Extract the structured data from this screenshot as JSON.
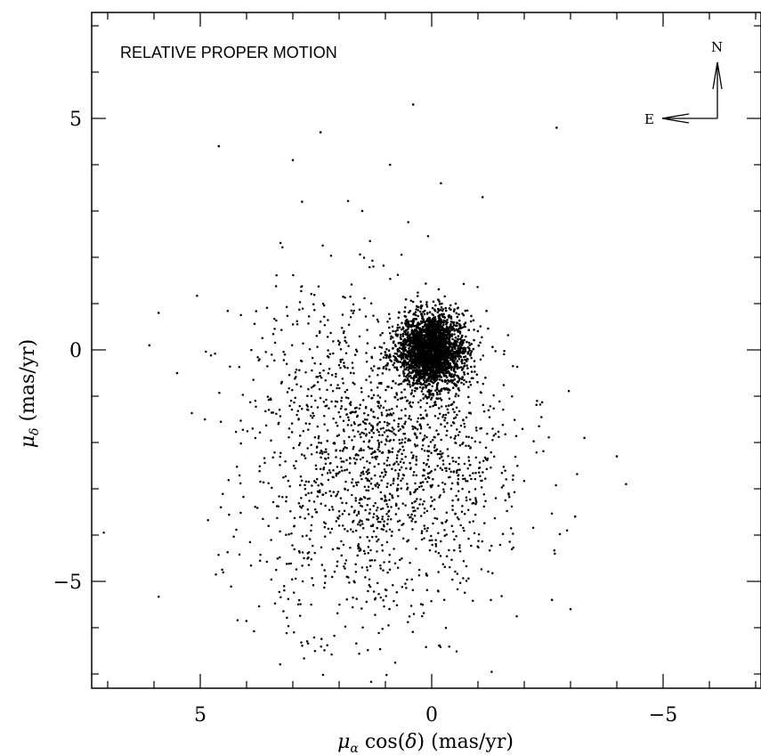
{
  "chart_data": {
    "type": "scatter",
    "title": "RELATIVE PROPER MOTION",
    "xlabel": "μα cos(δ) (mas/yr)",
    "ylabel": "μδ (mas/yr)",
    "xlim": [
      7.2,
      -7.0
    ],
    "ylim": [
      -7.3,
      7.2
    ],
    "xticks": [
      5,
      0,
      -5
    ],
    "xtick_labels": [
      "5",
      "0",
      "−5"
    ],
    "yticks": [
      5,
      0,
      -5
    ],
    "ytick_labels": [
      "5",
      "0",
      "−5"
    ],
    "grid": false,
    "compass": {
      "north_label": "N",
      "east_label": "E"
    },
    "series": [
      {
        "description": "cluster core",
        "distribution": "dense",
        "center": [
          0.0,
          0.0
        ],
        "spread": [
          0.35,
          0.4
        ],
        "count": 2500
      },
      {
        "description": "field population",
        "distribution": "diffuse",
        "center": [
          0.7,
          -2.4
        ],
        "spread": [
          1.4,
          1.7
        ],
        "count": 1800
      }
    ],
    "outliers": [
      [
        0.4,
        5.3
      ],
      [
        -2.7,
        4.8
      ],
      [
        4.6,
        4.4
      ],
      [
        3.0,
        4.1
      ],
      [
        2.4,
        4.7
      ],
      [
        0.9,
        4.0
      ],
      [
        -0.2,
        3.6
      ],
      [
        -1.1,
        3.3
      ],
      [
        1.5,
        3.0
      ],
      [
        2.8,
        3.2
      ],
      [
        5.9,
        0.8
      ],
      [
        6.1,
        0.1
      ],
      [
        5.5,
        -0.5
      ],
      [
        4.9,
        -1.5
      ],
      [
        -3.3,
        -1.9
      ],
      [
        -4.0,
        -2.3
      ],
      [
        -4.2,
        -2.9
      ],
      [
        -3.1,
        -3.6
      ],
      [
        -2.6,
        -5.4
      ],
      [
        -3.0,
        -5.6
      ]
    ]
  }
}
